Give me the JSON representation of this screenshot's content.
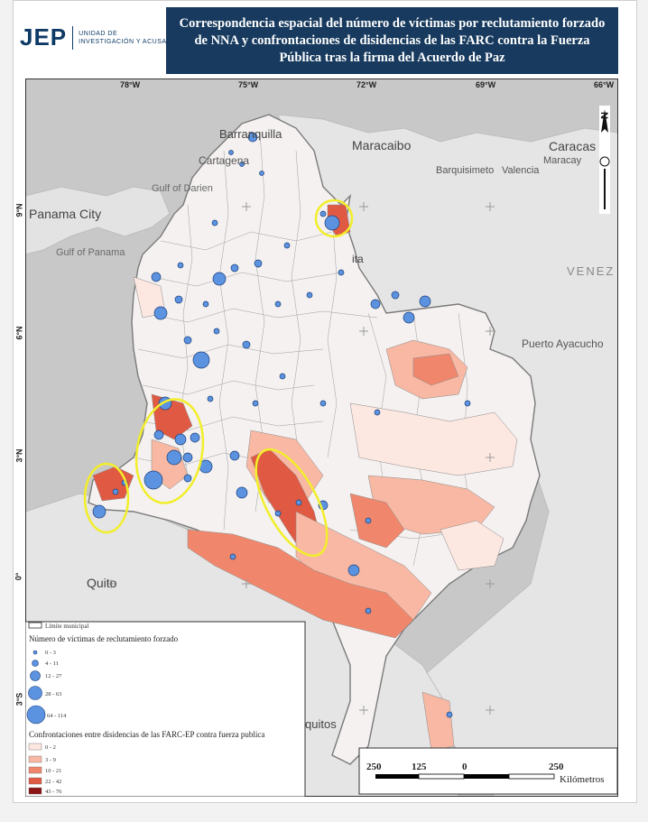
{
  "header": {
    "logo_mark": "JEP",
    "logo_line1": "Unidad de",
    "logo_line2": "Investigación y Acusación",
    "title": "Correspondencia espacial del número de víctimas por reclutamiento forzado de NNA y confrontaciones de disidencias de las FARC contra la Fuerza Pública tras la firma del Acuerdo de Paz"
  },
  "map": {
    "graticule_lon": [
      "78°W",
      "75°W",
      "72°W",
      "69°W",
      "66°W"
    ],
    "graticule_lat": [
      "9°N",
      "6°N",
      "3°N",
      "0°",
      "3°S"
    ],
    "place_labels": [
      "Barranquilla",
      "Cartagena",
      "Maracaibo",
      "Caracas",
      "Maracay",
      "Barquisimeto",
      "Valencia",
      "Gulf of Darien",
      "Panama City",
      "Gulf of Panama",
      "VENEZ",
      "Puerto Ayacucho",
      "Quito",
      "quitos",
      "ita"
    ],
    "north_label": "N",
    "colors": {
      "sea": "#c8c8c8",
      "land": "#e6e6e6",
      "municipal": "#ffffff",
      "c0": "#fde7e1",
      "c1": "#f8b8a3",
      "c2": "#f0876c",
      "c3": "#e05a43",
      "c4": "#c43222",
      "c5": "#8c1414",
      "circle": "#5b93e0",
      "highlight": "#f2ee2a"
    }
  },
  "legend": {
    "limit_label": "Límite municipal",
    "victims_title": "Número de víctimas de reclutamiento forzado",
    "victims_classes": [
      "0 - 3",
      "4 - 11",
      "12 - 27",
      "28 - 63",
      "64 - 114"
    ],
    "confront_title": "Confrontaciones entre disidencias de las FARC-EP contra fuerza publica",
    "confront_classes": [
      "0 - 2",
      "3 - 9",
      "10 - 21",
      "22 - 42",
      "43 - 76"
    ]
  },
  "scale_bar": {
    "ticks": [
      "250",
      "125",
      "0",
      "250"
    ],
    "unit": "Kilómetros"
  }
}
